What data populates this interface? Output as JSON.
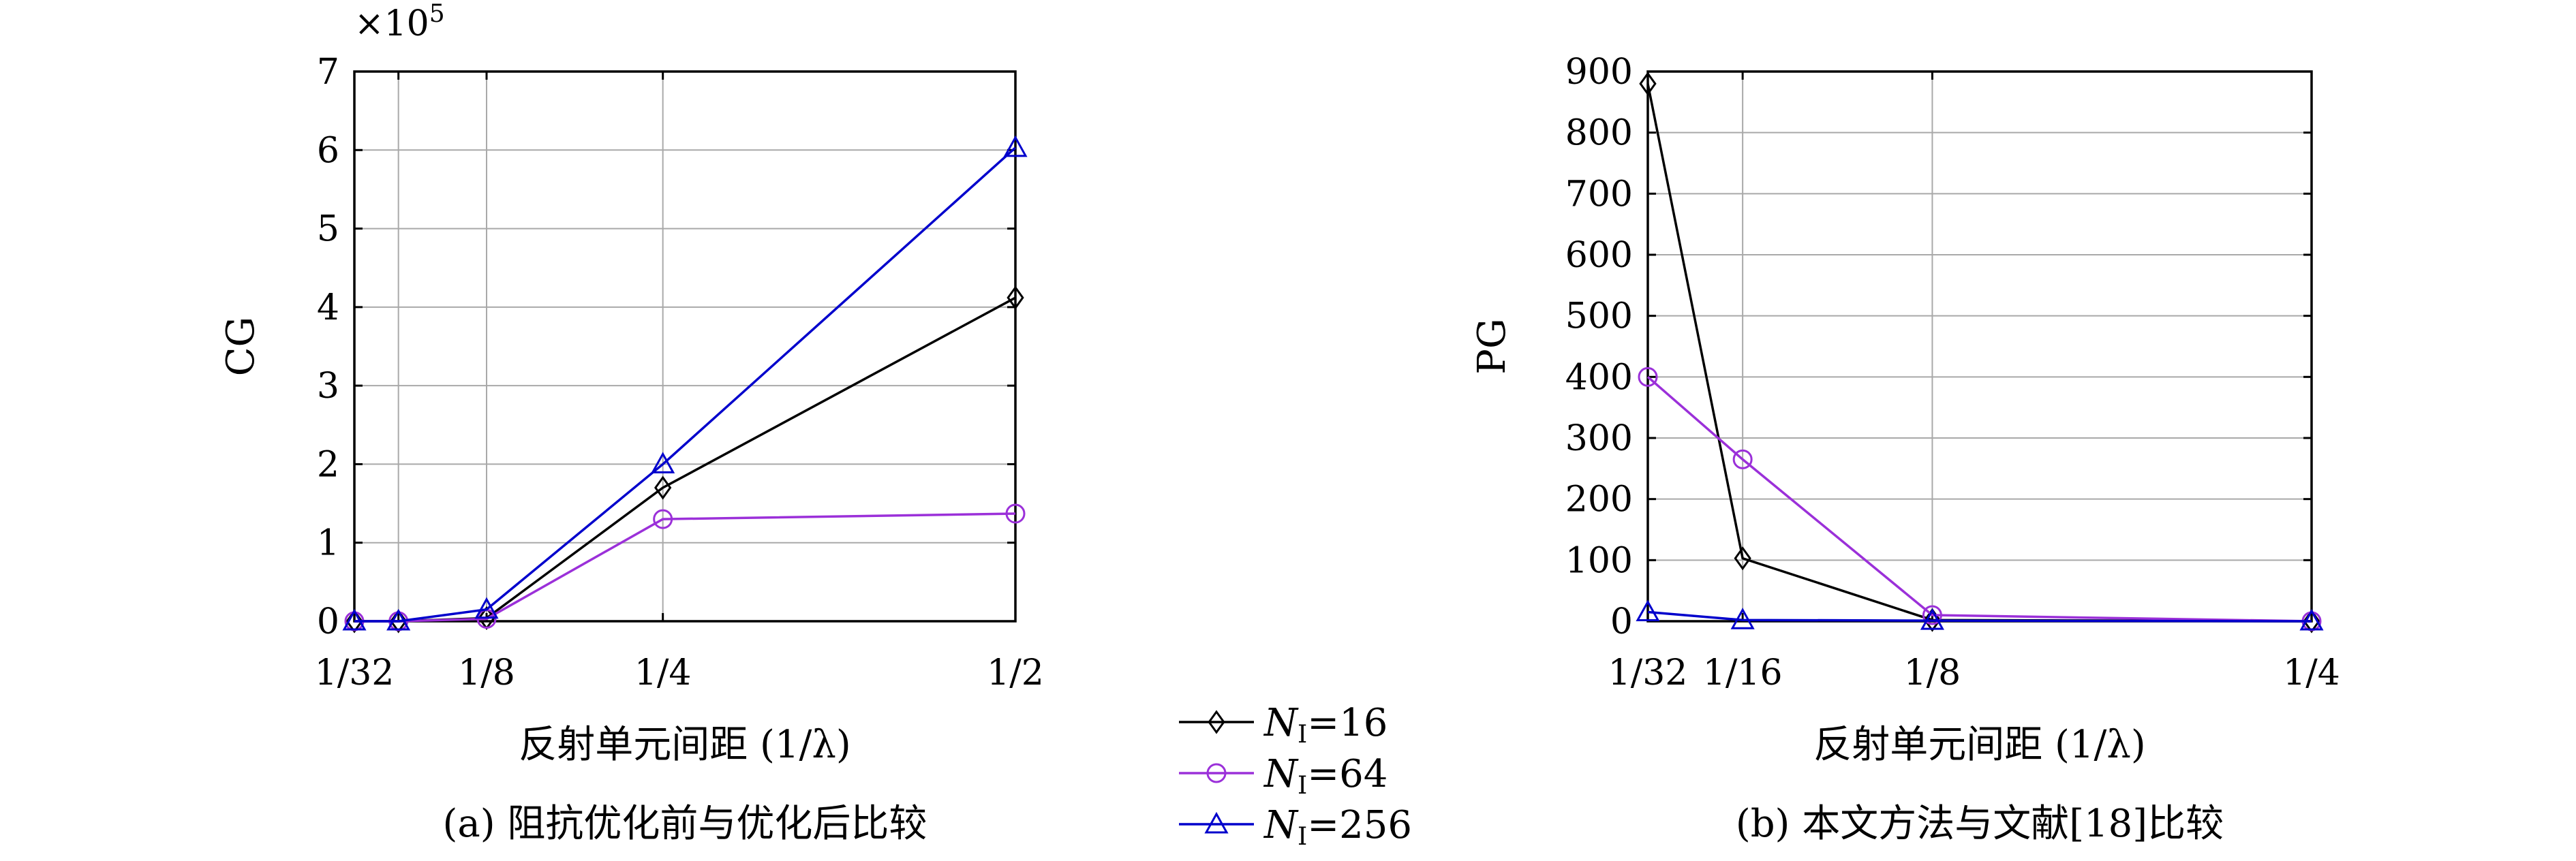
{
  "chart_data": [
    {
      "type": "line",
      "caption": "(a) 阻抗优化前与优化后比较",
      "xlabel": "反射单元间距 (1/λ)",
      "ylabel": "CG",
      "y_multiplier": "×10",
      "y_multiplier_exp": "5",
      "x_scale": "linear",
      "xlim": [
        0.03125,
        0.5
      ],
      "ylim": [
        0,
        7
      ],
      "x_ticks": [
        0.03125,
        0.0625,
        0.125,
        0.25,
        0.5
      ],
      "x_tick_labels": [
        "1/32",
        "",
        "1/8",
        "1/4",
        "1/2"
      ],
      "y_ticks": [
        0,
        1,
        2,
        3,
        4,
        5,
        6,
        7
      ],
      "y_tick_labels": [
        "0",
        "1",
        "2",
        "3",
        "4",
        "5",
        "6",
        "7"
      ],
      "grid": true,
      "series": [
        {
          "name": "N_I=16",
          "color": "#000000",
          "marker": "diamond",
          "x": [
            0.03125,
            0.0625,
            0.125,
            0.25,
            0.5
          ],
          "values": [
            0,
            0,
            0.04,
            1.7,
            4.12
          ]
        },
        {
          "name": "N_I=64",
          "color": "#9b30d9",
          "marker": "circle",
          "x": [
            0.03125,
            0.0625,
            0.125,
            0.25,
            0.5
          ],
          "values": [
            0,
            0,
            0.03,
            1.3,
            1.37
          ]
        },
        {
          "name": "N_I=256",
          "color": "#0000cc",
          "marker": "triangle",
          "x": [
            0.03125,
            0.0625,
            0.125,
            0.25,
            0.5
          ],
          "values": [
            0,
            0,
            0.15,
            2.0,
            6.03
          ]
        }
      ]
    },
    {
      "type": "line",
      "caption": "(b) 本文方法与文献[18]比较",
      "xlabel": "反射单元间距 (1/λ)",
      "ylabel": "PG",
      "x_scale": "linear",
      "xlim": [
        0.03125,
        0.25
      ],
      "ylim": [
        0,
        900
      ],
      "x_ticks": [
        0.03125,
        0.0625,
        0.125,
        0.25
      ],
      "x_tick_labels": [
        "1/32",
        "1/16",
        "1/8",
        "1/4"
      ],
      "y_ticks": [
        0,
        100,
        200,
        300,
        400,
        500,
        600,
        700,
        800,
        900
      ],
      "y_tick_labels": [
        "0",
        "100",
        "200",
        "300",
        "400",
        "500",
        "600",
        "700",
        "800",
        "900"
      ],
      "grid": true,
      "series": [
        {
          "name": "N_I=16",
          "color": "#000000",
          "marker": "diamond",
          "x": [
            0.03125,
            0.0625,
            0.125,
            0.25
          ],
          "values": [
            880,
            103,
            2,
            0
          ]
        },
        {
          "name": "N_I=64",
          "color": "#9b30d9",
          "marker": "circle",
          "x": [
            0.03125,
            0.0625,
            0.125,
            0.25
          ],
          "values": [
            400,
            265,
            10,
            0
          ]
        },
        {
          "name": "N_I=256",
          "color": "#0000cc",
          "marker": "triangle",
          "x": [
            0.03125,
            0.0625,
            0.125,
            0.25
          ],
          "values": [
            15,
            2,
            1,
            0
          ]
        }
      ]
    }
  ],
  "legend": {
    "placement": "bottom-center",
    "entries": [
      {
        "symbol": "N",
        "subscript": "I",
        "value": "=16",
        "color": "#000000",
        "marker": "diamond"
      },
      {
        "symbol": "N",
        "subscript": "I",
        "value": "=64",
        "color": "#9b30d9",
        "marker": "circle"
      },
      {
        "symbol": "N",
        "subscript": "I",
        "value": "=256",
        "color": "#0000cc",
        "marker": "triangle"
      }
    ]
  }
}
